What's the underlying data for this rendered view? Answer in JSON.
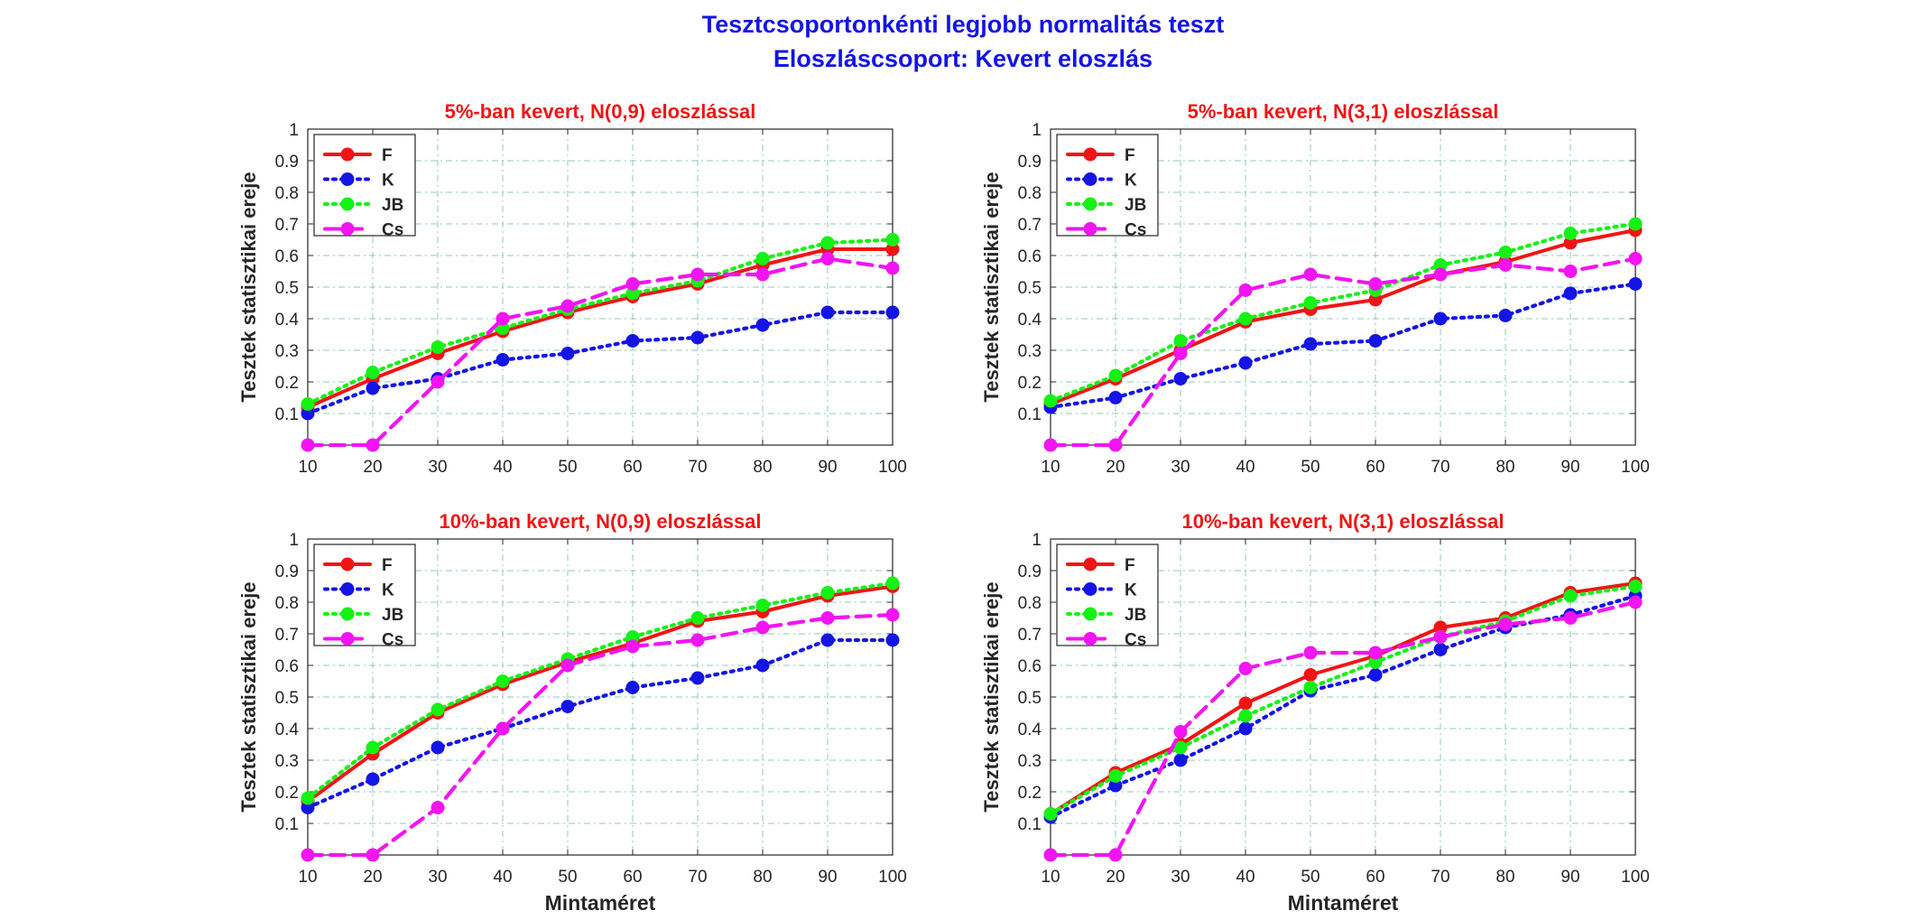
{
  "figure": {
    "title_line1": "Tesztcsoportonkénti legjobb normalitás teszt",
    "title_line2": "Eloszláscsoport: Kevert eloszlás"
  },
  "colors": {
    "F": "#f21414",
    "K": "#1414e6",
    "JB": "#14f214",
    "Cs": "#f214f2",
    "subplot_title": "#f21414",
    "suptitle": "#1414e6",
    "grid": "#8cc8be"
  },
  "chart_data": [
    {
      "type": "line",
      "title": "5%-ban kevert, N(0,9) eloszlással",
      "xlabel": "",
      "ylabel": "Tesztek statisztikai ereje",
      "x": [
        10,
        20,
        30,
        40,
        50,
        60,
        70,
        80,
        90,
        100
      ],
      "xlim": [
        10,
        100
      ],
      "ylim": [
        0,
        1
      ],
      "yticks": [
        0.1,
        0.2,
        0.3,
        0.4,
        0.5,
        0.6,
        0.7,
        0.8,
        0.9,
        1
      ],
      "grid": true,
      "legend": "top-left",
      "series": [
        {
          "name": "F",
          "style": "solid",
          "values": [
            0.12,
            0.21,
            0.29,
            0.36,
            0.42,
            0.47,
            0.51,
            0.57,
            0.62,
            0.62
          ]
        },
        {
          "name": "K",
          "style": "dotted",
          "values": [
            0.1,
            0.18,
            0.21,
            0.27,
            0.29,
            0.33,
            0.34,
            0.38,
            0.42,
            0.42
          ]
        },
        {
          "name": "JB",
          "style": "dotted",
          "values": [
            0.13,
            0.23,
            0.31,
            0.37,
            0.43,
            0.48,
            0.52,
            0.59,
            0.64,
            0.65
          ]
        },
        {
          "name": "Cs",
          "style": "dashed",
          "values": [
            0.0,
            0.0,
            0.2,
            0.4,
            0.44,
            0.51,
            0.54,
            0.54,
            0.59,
            0.56
          ]
        }
      ]
    },
    {
      "type": "line",
      "title": "5%-ban kevert, N(3,1) eloszlással",
      "xlabel": "",
      "ylabel": "Tesztek statisztikai ereje",
      "x": [
        10,
        20,
        30,
        40,
        50,
        60,
        70,
        80,
        90,
        100
      ],
      "xlim": [
        10,
        100
      ],
      "ylim": [
        0,
        1
      ],
      "yticks": [
        0.1,
        0.2,
        0.3,
        0.4,
        0.5,
        0.6,
        0.7,
        0.8,
        0.9,
        1
      ],
      "grid": true,
      "legend": "top-left",
      "series": [
        {
          "name": "F",
          "style": "solid",
          "values": [
            0.13,
            0.21,
            0.3,
            0.39,
            0.43,
            0.46,
            0.54,
            0.58,
            0.64,
            0.68
          ]
        },
        {
          "name": "K",
          "style": "dotted",
          "values": [
            0.12,
            0.15,
            0.21,
            0.26,
            0.32,
            0.33,
            0.4,
            0.41,
            0.48,
            0.51
          ]
        },
        {
          "name": "JB",
          "style": "dotted",
          "values": [
            0.14,
            0.22,
            0.33,
            0.4,
            0.45,
            0.49,
            0.57,
            0.61,
            0.67,
            0.7
          ]
        },
        {
          "name": "Cs",
          "style": "dashed",
          "values": [
            0.0,
            0.0,
            0.29,
            0.49,
            0.54,
            0.51,
            0.54,
            0.57,
            0.55,
            0.59
          ]
        }
      ]
    },
    {
      "type": "line",
      "title": "10%-ban kevert, N(0,9) eloszlással",
      "xlabel": "Mintaméret",
      "ylabel": "Tesztek statisztikai ereje",
      "x": [
        10,
        20,
        30,
        40,
        50,
        60,
        70,
        80,
        90,
        100
      ],
      "xlim": [
        10,
        100
      ],
      "ylim": [
        0,
        1
      ],
      "yticks": [
        0.1,
        0.2,
        0.3,
        0.4,
        0.5,
        0.6,
        0.7,
        0.8,
        0.9,
        1
      ],
      "grid": true,
      "legend": "top-left",
      "series": [
        {
          "name": "F",
          "style": "solid",
          "values": [
            0.17,
            0.32,
            0.45,
            0.54,
            0.61,
            0.67,
            0.74,
            0.77,
            0.82,
            0.85
          ]
        },
        {
          "name": "K",
          "style": "dotted",
          "values": [
            0.15,
            0.24,
            0.34,
            0.4,
            0.47,
            0.53,
            0.56,
            0.6,
            0.68,
            0.68
          ]
        },
        {
          "name": "JB",
          "style": "dotted",
          "values": [
            0.18,
            0.34,
            0.46,
            0.55,
            0.62,
            0.69,
            0.75,
            0.79,
            0.83,
            0.86
          ]
        },
        {
          "name": "Cs",
          "style": "dashed",
          "values": [
            0.0,
            0.0,
            0.15,
            0.4,
            0.6,
            0.66,
            0.68,
            0.72,
            0.75,
            0.76
          ]
        }
      ]
    },
    {
      "type": "line",
      "title": "10%-ban kevert, N(3,1) eloszlással",
      "xlabel": "Mintaméret",
      "ylabel": "Tesztek statisztikai ereje",
      "x": [
        10,
        20,
        30,
        40,
        50,
        60,
        70,
        80,
        90,
        100
      ],
      "xlim": [
        10,
        100
      ],
      "ylim": [
        0,
        1
      ],
      "yticks": [
        0.1,
        0.2,
        0.3,
        0.4,
        0.5,
        0.6,
        0.7,
        0.8,
        0.9,
        1
      ],
      "grid": true,
      "legend": "top-left",
      "series": [
        {
          "name": "F",
          "style": "solid",
          "values": [
            0.13,
            0.26,
            0.35,
            0.48,
            0.57,
            0.63,
            0.72,
            0.75,
            0.83,
            0.86
          ]
        },
        {
          "name": "K",
          "style": "dotted",
          "values": [
            0.12,
            0.22,
            0.3,
            0.4,
            0.52,
            0.57,
            0.65,
            0.72,
            0.76,
            0.82
          ]
        },
        {
          "name": "JB",
          "style": "dotted",
          "values": [
            0.13,
            0.25,
            0.34,
            0.44,
            0.53,
            0.61,
            0.69,
            0.74,
            0.82,
            0.85
          ]
        },
        {
          "name": "Cs",
          "style": "dashed",
          "values": [
            0.0,
            0.0,
            0.39,
            0.59,
            0.64,
            0.64,
            0.69,
            0.73,
            0.75,
            0.8
          ]
        }
      ]
    }
  ]
}
